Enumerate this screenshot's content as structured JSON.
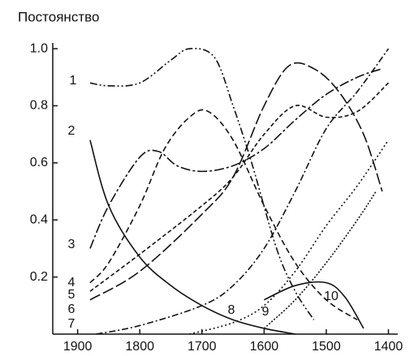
{
  "chart_data": {
    "type": "line",
    "title": "Постоянство",
    "xlim": [
      1940,
      1385
    ],
    "xticks": [
      1900,
      1800,
      1700,
      1600,
      1500,
      1400
    ],
    "ylim": [
      0,
      1.02
    ],
    "yticks": [
      {
        "value": 1,
        "label": "1.0"
      },
      0.8,
      0.6,
      0.4,
      0.2
    ],
    "series": [
      {
        "name": "1",
        "color": "#111",
        "dash": "9 3 2 3 2 3",
        "x": [
          1880,
          1850,
          1800,
          1750,
          1720,
          1680,
          1650,
          1620,
          1580,
          1550,
          1520
        ],
        "values": [
          0.88,
          0.87,
          0.88,
          0.96,
          1.0,
          0.97,
          0.8,
          0.6,
          0.3,
          0.15,
          0.05
        ]
      },
      {
        "name": "2",
        "color": "#111",
        "dash": "none",
        "x": [
          1880,
          1850,
          1800,
          1750,
          1700,
          1650,
          1600,
          1550
        ],
        "values": [
          0.68,
          0.45,
          0.27,
          0.17,
          0.1,
          0.05,
          0.02,
          0.0
        ]
      },
      {
        "name": "3",
        "color": "#111",
        "dash": "12 3 3 3",
        "x": [
          1880,
          1850,
          1800,
          1770,
          1740,
          1700,
          1650,
          1600,
          1550,
          1500,
          1450,
          1410
        ],
        "values": [
          0.3,
          0.45,
          0.62,
          0.64,
          0.59,
          0.57,
          0.59,
          0.65,
          0.75,
          0.84,
          0.9,
          0.93
        ]
      },
      {
        "name": "4",
        "color": "#111",
        "dash": "7 4",
        "x": [
          1880,
          1850,
          1800,
          1760,
          1720,
          1690,
          1650,
          1600,
          1550,
          1500,
          1450
        ],
        "values": [
          0.18,
          0.25,
          0.45,
          0.65,
          0.76,
          0.78,
          0.68,
          0.45,
          0.25,
          0.12,
          0.05
        ]
      },
      {
        "name": "5",
        "color": "#111",
        "dash": "5 3",
        "x": [
          1880,
          1800,
          1700,
          1650,
          1600,
          1550,
          1500,
          1450,
          1400
        ],
        "values": [
          0.15,
          0.28,
          0.45,
          0.55,
          0.7,
          0.8,
          0.76,
          0.78,
          0.88
        ]
      },
      {
        "name": "6",
        "color": "#111",
        "dash": "14 4",
        "x": [
          1880,
          1800,
          1700,
          1650,
          1600,
          1560,
          1520,
          1480,
          1440,
          1410
        ],
        "values": [
          0.12,
          0.22,
          0.42,
          0.55,
          0.8,
          0.94,
          0.93,
          0.85,
          0.7,
          0.5
        ]
      },
      {
        "name": "7",
        "color": "#111",
        "dash": "8 3 2 3",
        "x": [
          1870,
          1800,
          1700,
          1650,
          1600,
          1550,
          1500,
          1450,
          1400
        ],
        "values": [
          0.0,
          0.03,
          0.1,
          0.17,
          0.3,
          0.5,
          0.72,
          0.85,
          1.0
        ]
      },
      {
        "name": "8",
        "color": "#111",
        "dash": "2 3",
        "x": [
          1720,
          1650,
          1600,
          1550,
          1500,
          1450,
          1400
        ],
        "values": [
          0.0,
          0.04,
          0.1,
          0.22,
          0.38,
          0.52,
          0.68
        ]
      },
      {
        "name": "9",
        "color": "#111",
        "dash": "2 2",
        "x": [
          1600,
          1550,
          1500,
          1450,
          1420
        ],
        "values": [
          0.02,
          0.12,
          0.25,
          0.4,
          0.5
        ]
      },
      {
        "name": "10",
        "color": "#111",
        "dash": "none",
        "x": [
          1600,
          1550,
          1500,
          1470,
          1440
        ],
        "values": [
          0.12,
          0.17,
          0.18,
          0.13,
          0.02
        ]
      }
    ]
  }
}
